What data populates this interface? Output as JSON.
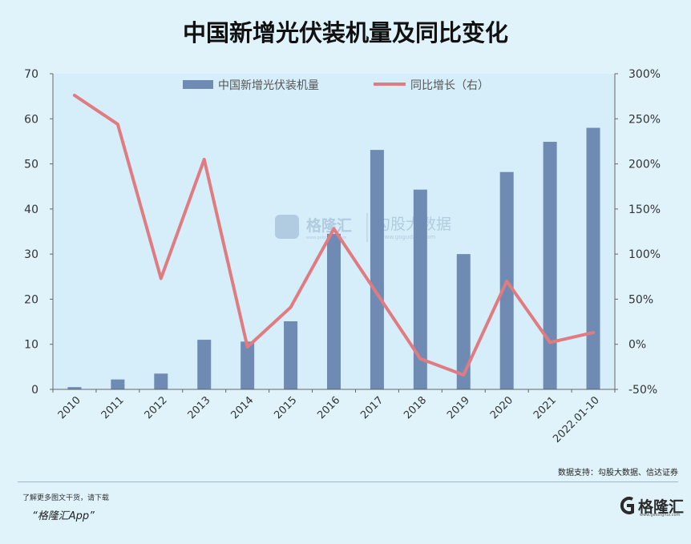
{
  "title": "中国新增光伏装机量及同比变化",
  "source": "数据支持：勾股大数据、信达证券",
  "footer": {
    "promo": "了解更多图文干货，请下载",
    "app": "“格隆汇App”",
    "brand": "格隆汇",
    "brand_domain": "www.gelonghui.com"
  },
  "watermark": {
    "brand": "格隆汇",
    "brand_domain": "www.gelonghui.com",
    "name": "勾股大数据",
    "domain": "www.gogudata.com"
  },
  "chart_data": {
    "type": "bar",
    "categories": [
      "2010",
      "2011",
      "2012",
      "2013",
      "2014",
      "2015",
      "2016",
      "2017",
      "2018",
      "2019",
      "2020",
      "2021",
      "2022.01-10"
    ],
    "series": [
      {
        "name": "中国新增光伏装机量",
        "type": "bar",
        "axis": "left",
        "color": "#6f8bb3",
        "values": [
          0.5,
          2.2,
          3.5,
          11.0,
          10.6,
          15.1,
          34.5,
          53.1,
          44.3,
          30.0,
          48.2,
          54.9,
          58.0
        ]
      },
      {
        "name": "同比增长（右）",
        "type": "line",
        "axis": "right",
        "color": "#e07b82",
        "values": [
          276,
          244,
          73,
          205,
          -3,
          41,
          128,
          56,
          -16,
          -34,
          70,
          2,
          13
        ]
      }
    ],
    "y_left": {
      "min": 0,
      "max": 70,
      "ticks": [
        "0",
        "10",
        "20",
        "30",
        "40",
        "50",
        "60",
        "70"
      ]
    },
    "y_right": {
      "min": -50,
      "max": 300,
      "ticks": [
        "-50%",
        "0%",
        "50%",
        "100%",
        "150%",
        "200%",
        "250%",
        "300%"
      ]
    },
    "legend": "top",
    "grid": false
  }
}
